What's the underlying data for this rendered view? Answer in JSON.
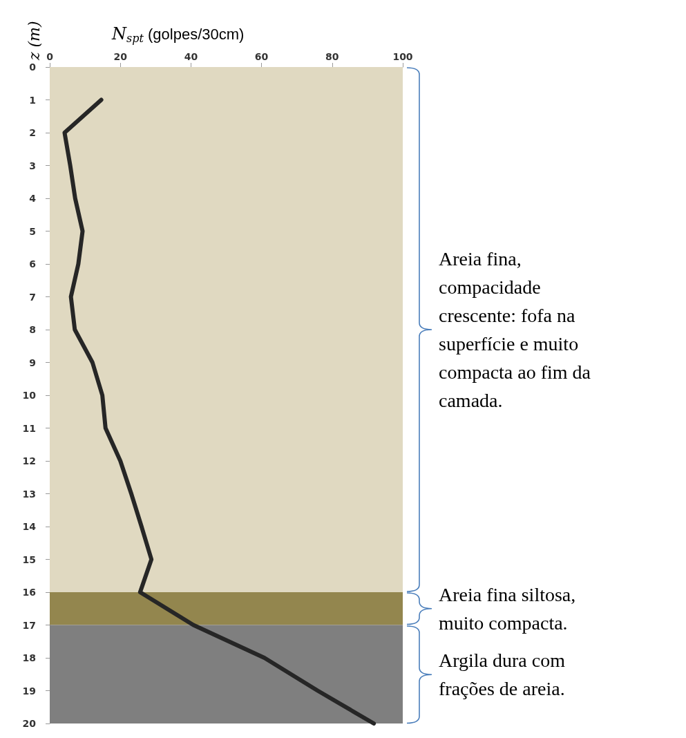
{
  "chart_data": {
    "type": "line",
    "xlabel": "N$_{spt}$ (golpes/30cm)",
    "ylabel": "z (m)",
    "x": [
      14.6,
      4.2,
      5.8,
      7.2,
      9.3,
      8.1,
      6.0,
      7.1,
      12.1,
      14.9,
      15.8,
      20.0,
      23.1,
      26.0,
      28.8,
      25.6,
      40.7,
      60.8,
      75.9,
      91.8
    ],
    "values": [
      1,
      2,
      3,
      4,
      5,
      6,
      7,
      8,
      9,
      10,
      11,
      12,
      13,
      14,
      15,
      16,
      17,
      18,
      19,
      20
    ],
    "color": "#262626",
    "marker": "none",
    "line_style": "solid",
    "xlim": [
      0,
      100
    ],
    "xticks": [
      0,
      20,
      40,
      60,
      80,
      100
    ],
    "ylim": [
      20,
      0
    ],
    "yticks": [
      0,
      1,
      2,
      3,
      4,
      5,
      6,
      7,
      8,
      9,
      10,
      11,
      12,
      13,
      14,
      15,
      16,
      17,
      18,
      19,
      20
    ],
    "grid": false,
    "bands": [
      {
        "axis": "y",
        "from": 0,
        "to": 16,
        "label": "Areia fina, compacidade crescente: fofa na superfície e muito compacta ao fim da camada.",
        "color": "#e0d9c1"
      },
      {
        "axis": "y",
        "from": 16,
        "to": 17,
        "label": "Areia fina siltosa, muito compacta.",
        "color": "#93864e"
      },
      {
        "axis": "y",
        "from": 17,
        "to": 20,
        "label": "Argila dura com frações de areia.",
        "color": "#7f7f7f"
      }
    ]
  }
}
